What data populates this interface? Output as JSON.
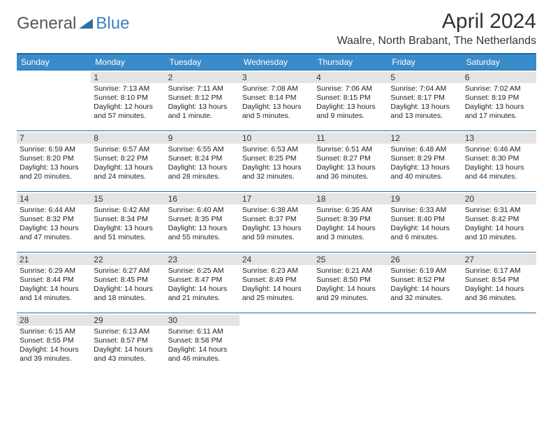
{
  "logo": {
    "text1": "General",
    "text2": "Blue",
    "text1_color": "#555555",
    "text2_color": "#3a80c3",
    "shape_color": "#2f6fa8"
  },
  "header": {
    "month_title": "April 2024",
    "location": "Waalre, North Brabant, The Netherlands"
  },
  "colors": {
    "header_bg": "#3a8bc9",
    "header_text": "#ffffff",
    "daynum_bg": "#e4e4e4",
    "border": "#1f6aa5",
    "body_text": "#222222",
    "title_color": "#333333"
  },
  "day_headers": [
    "Sunday",
    "Monday",
    "Tuesday",
    "Wednesday",
    "Thursday",
    "Friday",
    "Saturday"
  ],
  "weeks": [
    [
      {
        "n": "",
        "lines": []
      },
      {
        "n": "1",
        "lines": [
          "Sunrise: 7:13 AM",
          "Sunset: 8:10 PM",
          "Daylight: 12 hours",
          "and 57 minutes."
        ]
      },
      {
        "n": "2",
        "lines": [
          "Sunrise: 7:11 AM",
          "Sunset: 8:12 PM",
          "Daylight: 13 hours",
          "and 1 minute."
        ]
      },
      {
        "n": "3",
        "lines": [
          "Sunrise: 7:08 AM",
          "Sunset: 8:14 PM",
          "Daylight: 13 hours",
          "and 5 minutes."
        ]
      },
      {
        "n": "4",
        "lines": [
          "Sunrise: 7:06 AM",
          "Sunset: 8:15 PM",
          "Daylight: 13 hours",
          "and 9 minutes."
        ]
      },
      {
        "n": "5",
        "lines": [
          "Sunrise: 7:04 AM",
          "Sunset: 8:17 PM",
          "Daylight: 13 hours",
          "and 13 minutes."
        ]
      },
      {
        "n": "6",
        "lines": [
          "Sunrise: 7:02 AM",
          "Sunset: 8:19 PM",
          "Daylight: 13 hours",
          "and 17 minutes."
        ]
      }
    ],
    [
      {
        "n": "7",
        "lines": [
          "Sunrise: 6:59 AM",
          "Sunset: 8:20 PM",
          "Daylight: 13 hours",
          "and 20 minutes."
        ]
      },
      {
        "n": "8",
        "lines": [
          "Sunrise: 6:57 AM",
          "Sunset: 8:22 PM",
          "Daylight: 13 hours",
          "and 24 minutes."
        ]
      },
      {
        "n": "9",
        "lines": [
          "Sunrise: 6:55 AM",
          "Sunset: 8:24 PM",
          "Daylight: 13 hours",
          "and 28 minutes."
        ]
      },
      {
        "n": "10",
        "lines": [
          "Sunrise: 6:53 AM",
          "Sunset: 8:25 PM",
          "Daylight: 13 hours",
          "and 32 minutes."
        ]
      },
      {
        "n": "11",
        "lines": [
          "Sunrise: 6:51 AM",
          "Sunset: 8:27 PM",
          "Daylight: 13 hours",
          "and 36 minutes."
        ]
      },
      {
        "n": "12",
        "lines": [
          "Sunrise: 6:48 AM",
          "Sunset: 8:29 PM",
          "Daylight: 13 hours",
          "and 40 minutes."
        ]
      },
      {
        "n": "13",
        "lines": [
          "Sunrise: 6:46 AM",
          "Sunset: 8:30 PM",
          "Daylight: 13 hours",
          "and 44 minutes."
        ]
      }
    ],
    [
      {
        "n": "14",
        "lines": [
          "Sunrise: 6:44 AM",
          "Sunset: 8:32 PM",
          "Daylight: 13 hours",
          "and 47 minutes."
        ]
      },
      {
        "n": "15",
        "lines": [
          "Sunrise: 6:42 AM",
          "Sunset: 8:34 PM",
          "Daylight: 13 hours",
          "and 51 minutes."
        ]
      },
      {
        "n": "16",
        "lines": [
          "Sunrise: 6:40 AM",
          "Sunset: 8:35 PM",
          "Daylight: 13 hours",
          "and 55 minutes."
        ]
      },
      {
        "n": "17",
        "lines": [
          "Sunrise: 6:38 AM",
          "Sunset: 8:37 PM",
          "Daylight: 13 hours",
          "and 59 minutes."
        ]
      },
      {
        "n": "18",
        "lines": [
          "Sunrise: 6:35 AM",
          "Sunset: 8:39 PM",
          "Daylight: 14 hours",
          "and 3 minutes."
        ]
      },
      {
        "n": "19",
        "lines": [
          "Sunrise: 6:33 AM",
          "Sunset: 8:40 PM",
          "Daylight: 14 hours",
          "and 6 minutes."
        ]
      },
      {
        "n": "20",
        "lines": [
          "Sunrise: 6:31 AM",
          "Sunset: 8:42 PM",
          "Daylight: 14 hours",
          "and 10 minutes."
        ]
      }
    ],
    [
      {
        "n": "21",
        "lines": [
          "Sunrise: 6:29 AM",
          "Sunset: 8:44 PM",
          "Daylight: 14 hours",
          "and 14 minutes."
        ]
      },
      {
        "n": "22",
        "lines": [
          "Sunrise: 6:27 AM",
          "Sunset: 8:45 PM",
          "Daylight: 14 hours",
          "and 18 minutes."
        ]
      },
      {
        "n": "23",
        "lines": [
          "Sunrise: 6:25 AM",
          "Sunset: 8:47 PM",
          "Daylight: 14 hours",
          "and 21 minutes."
        ]
      },
      {
        "n": "24",
        "lines": [
          "Sunrise: 6:23 AM",
          "Sunset: 8:49 PM",
          "Daylight: 14 hours",
          "and 25 minutes."
        ]
      },
      {
        "n": "25",
        "lines": [
          "Sunrise: 6:21 AM",
          "Sunset: 8:50 PM",
          "Daylight: 14 hours",
          "and 29 minutes."
        ]
      },
      {
        "n": "26",
        "lines": [
          "Sunrise: 6:19 AM",
          "Sunset: 8:52 PM",
          "Daylight: 14 hours",
          "and 32 minutes."
        ]
      },
      {
        "n": "27",
        "lines": [
          "Sunrise: 6:17 AM",
          "Sunset: 8:54 PM",
          "Daylight: 14 hours",
          "and 36 minutes."
        ]
      }
    ],
    [
      {
        "n": "28",
        "lines": [
          "Sunrise: 6:15 AM",
          "Sunset: 8:55 PM",
          "Daylight: 14 hours",
          "and 39 minutes."
        ]
      },
      {
        "n": "29",
        "lines": [
          "Sunrise: 6:13 AM",
          "Sunset: 8:57 PM",
          "Daylight: 14 hours",
          "and 43 minutes."
        ]
      },
      {
        "n": "30",
        "lines": [
          "Sunrise: 6:11 AM",
          "Sunset: 8:58 PM",
          "Daylight: 14 hours",
          "and 46 minutes."
        ]
      },
      {
        "n": "",
        "lines": []
      },
      {
        "n": "",
        "lines": []
      },
      {
        "n": "",
        "lines": []
      },
      {
        "n": "",
        "lines": []
      }
    ]
  ]
}
